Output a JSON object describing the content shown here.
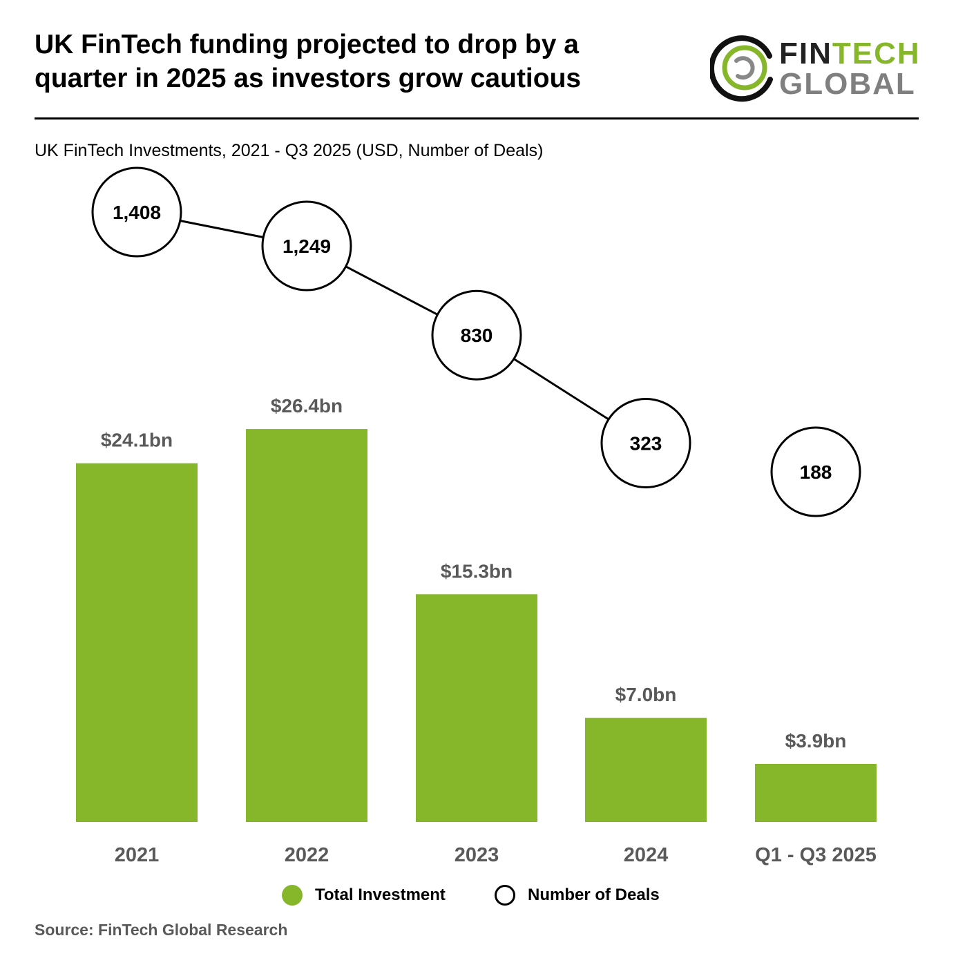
{
  "header": {
    "title_line1": "UK FinTech funding projected to drop by a",
    "title_line2": "quarter in 2025 as investors grow cautious",
    "subtitle": "UK FinTech Investments, 2021 - Q3 2025 (USD, Number of Deals)"
  },
  "logo": {
    "line1_a": "FIN",
    "line1_b": "TECH",
    "line2": "GLOBAL"
  },
  "chart_data": {
    "type": "bar",
    "categories": [
      "2021",
      "2022",
      "2023",
      "2024",
      "Q1 - Q3 2025"
    ],
    "series": [
      {
        "name": "Total Investment",
        "type": "bar",
        "values": [
          24.1,
          26.4,
          15.3,
          7.0,
          3.9
        ],
        "labels": [
          "$24.1bn",
          "$26.4bn",
          "$15.3bn",
          "$7.0bn",
          "$3.9bn"
        ],
        "color": "#86b62a"
      },
      {
        "name": "Number of Deals",
        "type": "line-circles",
        "values": [
          1408,
          1249,
          830,
          323,
          188
        ],
        "labels": [
          "1,408",
          "1,249",
          "830",
          "323",
          "188"
        ],
        "connected_through_index": 3
      }
    ],
    "legend_position": "bottom",
    "grid": false
  },
  "legend": {
    "bar_label": "Total Investment",
    "circle_label": "Number of Deals"
  },
  "source": "Source: FinTech Global Research"
}
